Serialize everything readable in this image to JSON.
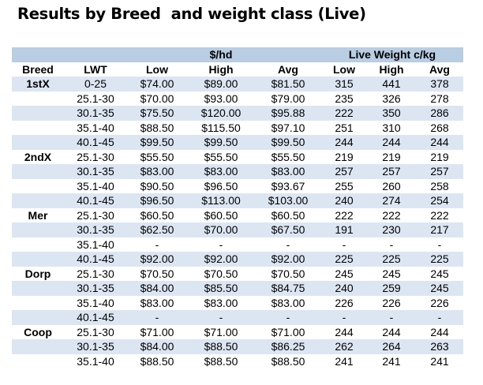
{
  "title": "Results by Breed  and weight class (Live)",
  "header_groups": {
    "dollar_per_head": "$/hd",
    "live_weight": "Live Weight c/kg"
  },
  "columns": [
    "Breed",
    "LWT",
    "Low",
    "High",
    "Avg",
    "Low",
    "High",
    "Avg"
  ],
  "rows": [
    [
      "1stX",
      "0-25",
      "$74.00",
      "$89.00",
      "$81.50",
      "315",
      "441",
      "378"
    ],
    [
      "",
      "25.1-30",
      "$70.00",
      "$93.00",
      "$79.00",
      "235",
      "326",
      "278"
    ],
    [
      "",
      "30.1-35",
      "$75.50",
      "$120.00",
      "$95.88",
      "222",
      "350",
      "286"
    ],
    [
      "",
      "35.1-40",
      "$88.50",
      "$115.50",
      "$97.10",
      "251",
      "310",
      "268"
    ],
    [
      "",
      "40.1-45",
      "$99.50",
      "$99.50",
      "$99.50",
      "244",
      "244",
      "244"
    ],
    [
      "2ndX",
      "25.1-30",
      "$55.50",
      "$55.50",
      "$55.50",
      "219",
      "219",
      "219"
    ],
    [
      "",
      "30.1-35",
      "$83.00",
      "$83.00",
      "$83.00",
      "257",
      "257",
      "257"
    ],
    [
      "",
      "35.1-40",
      "$90.50",
      "$96.50",
      "$93.67",
      "255",
      "260",
      "258"
    ],
    [
      "",
      "40.1-45",
      "$96.50",
      "$113.00",
      "$103.00",
      "240",
      "274",
      "254"
    ],
    [
      "Mer",
      "25.1-30",
      "$60.50",
      "$60.50",
      "$60.50",
      "222",
      "222",
      "222"
    ],
    [
      "",
      "30.1-35",
      "$62.50",
      "$70.00",
      "$67.50",
      "191",
      "230",
      "217"
    ],
    [
      "",
      "35.1-40",
      "-",
      "-",
      "-",
      "-",
      "-",
      "-"
    ],
    [
      "",
      "40.1-45",
      "$92.00",
      "$92.00",
      "$92.00",
      "225",
      "225",
      "225"
    ],
    [
      "Dorp",
      "25.1-30",
      "$70.50",
      "$70.50",
      "$70.50",
      "245",
      "245",
      "245"
    ],
    [
      "",
      "30.1-35",
      "$84.00",
      "$85.50",
      "$84.75",
      "240",
      "259",
      "245"
    ],
    [
      "",
      "35.1-40",
      "$83.00",
      "$83.00",
      "$83.00",
      "226",
      "226",
      "226"
    ],
    [
      "",
      "40.1-45",
      "-",
      "-",
      "-",
      "-",
      "-",
      "-"
    ],
    [
      "Coop",
      "25.1-30",
      "$71.00",
      "$71.00",
      "$71.00",
      "244",
      "244",
      "244"
    ],
    [
      "",
      "30.1-35",
      "$84.00",
      "$88.50",
      "$86.25",
      "262",
      "264",
      "263"
    ],
    [
      "",
      "35.1-40",
      "$88.50",
      "$88.50",
      "$88.50",
      "241",
      "241",
      "241"
    ]
  ],
  "colors": {
    "header_band": "#b9cde3",
    "row_band": "#dce6f2",
    "row_plain": "#ffffff"
  }
}
